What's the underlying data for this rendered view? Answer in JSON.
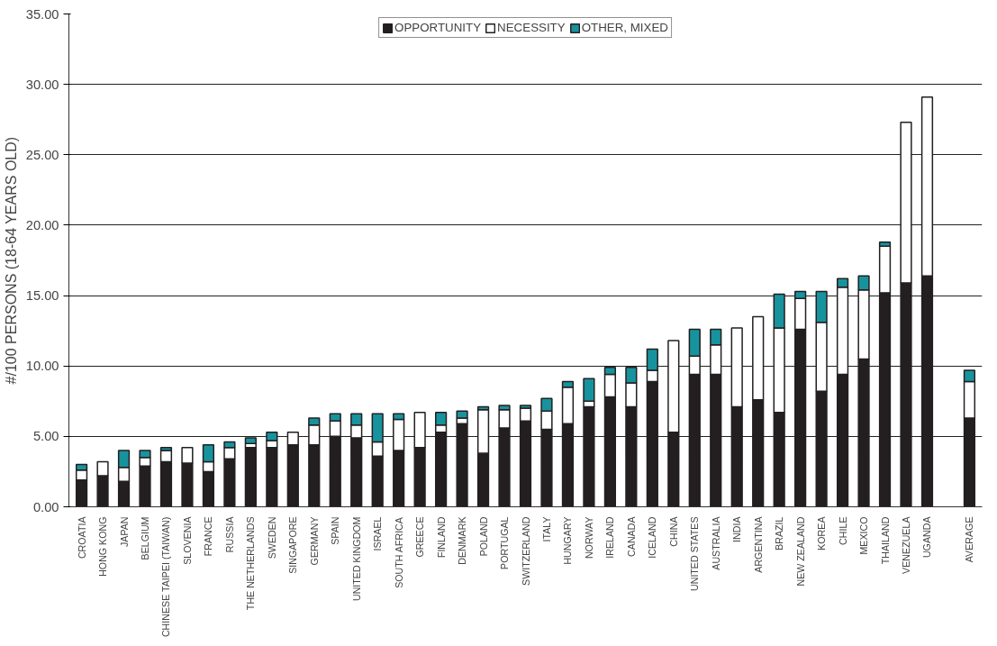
{
  "chart_data": {
    "type": "bar",
    "stacked": true,
    "ylabel": "#/100 PERSONS (18-64 YEARS OLD)",
    "categories": [
      "CROATIA",
      "HONG KONG",
      "JAPAN",
      "BELGIUM",
      "CHINESE TAIPEI (TAIWAN)",
      "SLOVENIA",
      "FRANCE",
      "RUSSIA",
      "THE NETHERLANDS",
      "SWEDEN",
      "SINGAPORE",
      "GERMANY",
      "SPAIN",
      "UNITED KINGDOM",
      "ISRAEL",
      "SOUTH AFRICA",
      "GREECE",
      "FINLAND",
      "DENMARK",
      "POLAND",
      "PORTUGAL",
      "SWITZERLAND",
      "ITALY",
      "HUNGARY",
      "NORWAY",
      "IRELAND",
      "CANADA",
      "ICELAND",
      "CHINA",
      "UNITED STATES",
      "AUSTRALIA",
      "INDIA",
      "ARGENTINA",
      "BRAZIL",
      "NEW ZEALAND",
      "KOREA",
      "CHILE",
      "MEXICO",
      "THAILAND",
      "VENEZUELA",
      "UGANDA",
      null,
      "AVERAGE"
    ],
    "series": [
      {
        "name": "OPPORTUNITY",
        "color": "#231f20",
        "values": [
          1.9,
          2.2,
          1.8,
          2.9,
          3.2,
          3.1,
          2.5,
          3.4,
          4.2,
          4.2,
          4.4,
          4.4,
          5.0,
          4.9,
          3.6,
          4.0,
          4.2,
          5.3,
          5.9,
          3.8,
          5.6,
          6.1,
          5.5,
          5.9,
          7.1,
          7.8,
          7.1,
          8.9,
          5.3,
          9.4,
          9.4,
          7.1,
          7.6,
          6.7,
          12.6,
          8.2,
          9.4,
          10.5,
          15.2,
          15.9,
          16.4,
          null,
          6.3
        ]
      },
      {
        "name": "NECESSITY",
        "color": "#ffffff",
        "values": [
          0.7,
          1.0,
          1.0,
          0.6,
          0.8,
          1.1,
          0.7,
          0.8,
          0.3,
          0.5,
          0.9,
          1.4,
          1.1,
          0.9,
          1.0,
          2.2,
          2.5,
          0.5,
          0.4,
          3.1,
          1.3,
          0.9,
          1.3,
          2.6,
          0.4,
          1.6,
          1.7,
          0.8,
          6.5,
          1.3,
          2.1,
          5.6,
          5.9,
          6.0,
          2.2,
          4.9,
          6.2,
          4.9,
          3.3,
          11.4,
          12.7,
          null,
          2.6
        ]
      },
      {
        "name": "OTHER, MIXED",
        "color": "#17939e",
        "values": [
          0.4,
          null,
          1.2,
          0.5,
          0.2,
          null,
          1.2,
          0.4,
          0.4,
          0.6,
          null,
          0.5,
          0.5,
          0.8,
          2.0,
          0.4,
          null,
          0.9,
          0.5,
          0.2,
          0.3,
          0.2,
          0.9,
          0.4,
          1.6,
          0.5,
          1.1,
          1.5,
          null,
          1.9,
          1.1,
          null,
          null,
          2.4,
          0.5,
          2.2,
          0.6,
          1.0,
          0.3,
          null,
          null,
          null,
          0.8
        ]
      }
    ],
    "ylim": [
      0,
      35
    ],
    "yticks": [
      {
        "value": 0,
        "label": "0.00"
      },
      {
        "value": 5,
        "label": "5.00"
      },
      {
        "value": 10,
        "label": "10.00"
      },
      {
        "value": 15,
        "label": "15.00"
      },
      {
        "value": 20,
        "label": "20.00"
      },
      {
        "value": 25,
        "label": "25.00"
      },
      {
        "value": 30,
        "label": "30.00"
      },
      {
        "value": 35,
        "label": "35.00"
      }
    ],
    "grid": "y",
    "legend": "top"
  }
}
